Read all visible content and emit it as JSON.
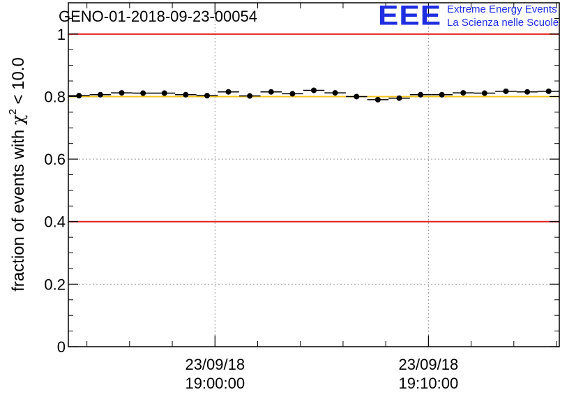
{
  "chart_data": {
    "type": "scatter",
    "title": "GENO-01-2018-09-23-00054",
    "ylabel_prefix": "fraction of events with ",
    "ylabel_symbol": "χ",
    "ylabel_superscript": "2",
    "ylabel_suffix": " < 10.0",
    "ylim": [
      0,
      1.1
    ],
    "y_ticks": [
      {
        "value": 0,
        "label": "0"
      },
      {
        "value": 0.2,
        "label": "0.2"
      },
      {
        "value": 0.4,
        "label": "0.4"
      },
      {
        "value": 0.6,
        "label": "0.6"
      },
      {
        "value": 0.8,
        "label": "0.8"
      },
      {
        "value": 1.0,
        "label": "1"
      }
    ],
    "x_unit": "minutes after 18:53:08",
    "xlim": [
      0,
      23
    ],
    "x_major_ticks": [
      {
        "value": 6.87,
        "date": "23/09/18",
        "time": "19:00:00"
      },
      {
        "value": 16.87,
        "date": "23/09/18",
        "time": "19:10:00"
      }
    ],
    "x_minor_ticks": [
      0.87,
      2.87,
      4.87,
      8.87,
      10.87,
      12.87,
      14.87,
      18.87,
      20.87,
      22.87
    ],
    "grid": true,
    "error_bar_halfwidth": 0.5,
    "series": [
      {
        "name": "fraction",
        "x": [
          0.5,
          1.5,
          2.5,
          3.5,
          4.5,
          5.5,
          6.5,
          7.5,
          8.5,
          9.5,
          10.5,
          11.5,
          12.5,
          13.5,
          14.5,
          15.5,
          16.5,
          17.5,
          18.5,
          19.5,
          20.5,
          21.5,
          22.5
        ],
        "values": [
          0.803,
          0.806,
          0.812,
          0.811,
          0.811,
          0.806,
          0.803,
          0.815,
          0.802,
          0.815,
          0.809,
          0.82,
          0.812,
          0.8,
          0.79,
          0.795,
          0.806,
          0.806,
          0.812,
          0.811,
          0.817,
          0.815,
          0.817
        ]
      }
    ],
    "reference_lines": [
      {
        "value": 1.0,
        "color": "#e3201b"
      },
      {
        "value": 0.4,
        "color": "#e3201b"
      },
      {
        "value": 0.8,
        "color": "#f5c518"
      }
    ]
  },
  "logo": {
    "mark": "EEE",
    "line1": "Extreme Energy Events",
    "line2": "La Scienza nelle Scuole",
    "color": "#1f2ee0"
  }
}
